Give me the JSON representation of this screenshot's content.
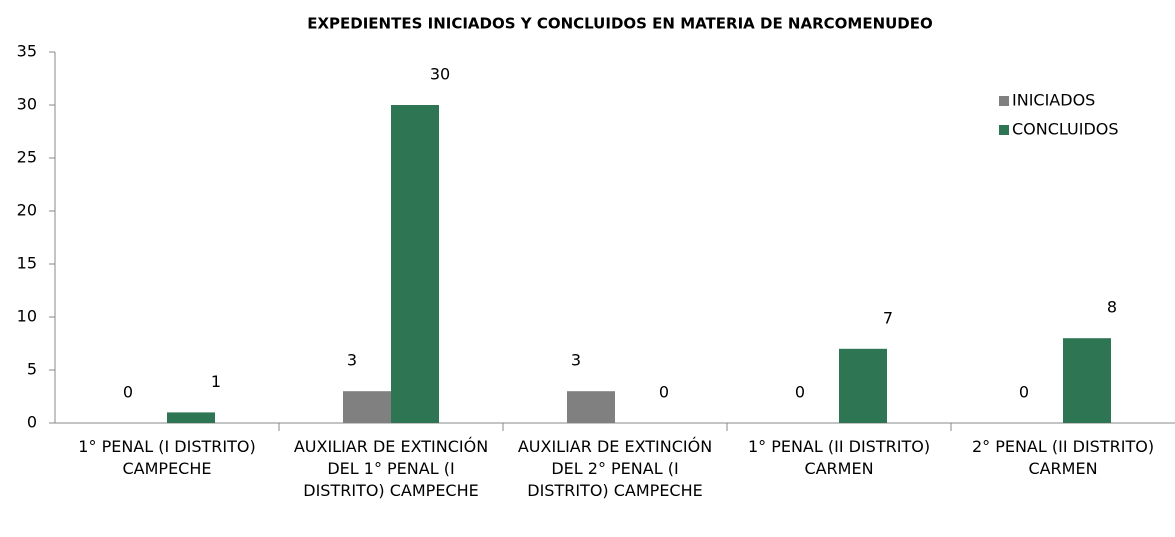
{
  "chart_data": {
    "type": "bar",
    "title": "EXPEDIENTES INICIADOS Y CONCLUIDOS EN MATERIA DE NARCOMENUDEO",
    "categories": [
      "1° PENAL (I DISTRITO) CAMPECHE",
      "AUXILIAR DE EXTINCIÓN DEL 1° PENAL (I DISTRITO) CAMPECHE",
      "AUXILIAR DE EXTINCIÓN DEL 2° PENAL (I DISTRITO) CAMPECHE",
      "1° PENAL (II DISTRITO) CARMEN",
      "2° PENAL (II DISTRITO) CARMEN"
    ],
    "series": [
      {
        "name": "INICIADOS",
        "color": "#808080",
        "values": [
          0,
          3,
          3,
          0,
          0
        ]
      },
      {
        "name": "CONCLUIDOS",
        "color": "#2e7553",
        "values": [
          1,
          30,
          0,
          7,
          8
        ]
      }
    ],
    "ylim": [
      0,
      35
    ],
    "yticks": [
      0,
      5,
      10,
      15,
      20,
      25,
      30,
      35
    ],
    "legend": "upper right"
  }
}
